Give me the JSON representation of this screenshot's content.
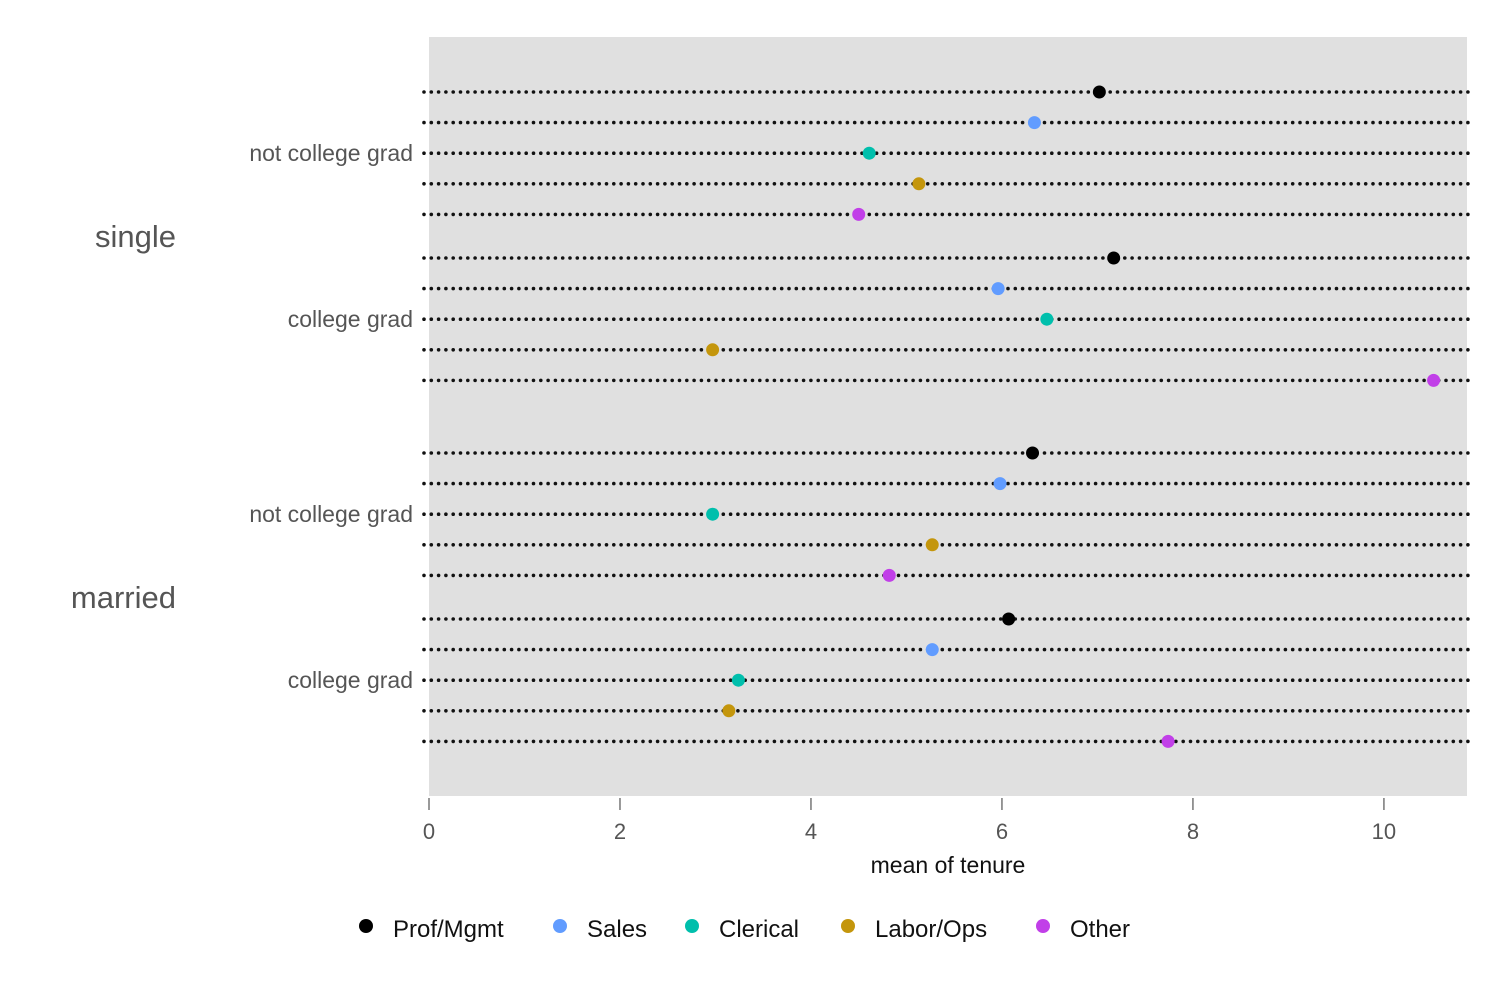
{
  "chart_data": {
    "type": "scatter",
    "title": "",
    "xlabel": "mean of tenure",
    "ylabel": "",
    "xlim": [
      0,
      10.87
    ],
    "xticks": [
      0,
      2,
      4,
      6,
      8,
      10
    ],
    "grid": "dotted horizontal guide lines",
    "legend_position": "bottom",
    "groups": [
      {
        "label": "single",
        "subgroups": [
          {
            "label": "not college grad",
            "values": [
              7.02,
              6.34,
              4.61,
              5.13,
              4.5
            ]
          },
          {
            "label": "college grad",
            "values": [
              7.17,
              5.96,
              6.47,
              2.97,
              10.52
            ]
          }
        ]
      },
      {
        "label": "married",
        "subgroups": [
          {
            "label": "not college grad",
            "values": [
              6.32,
              5.98,
              2.97,
              5.27,
              4.82
            ]
          },
          {
            "label": "college grad",
            "values": [
              6.07,
              5.27,
              3.24,
              3.14,
              7.74
            ]
          }
        ]
      }
    ],
    "series": [
      {
        "name": "Prof/Mgmt",
        "color": "#000000"
      },
      {
        "name": "Sales",
        "color": "#619CFF"
      },
      {
        "name": "Clerical",
        "color": "#00BFAC"
      },
      {
        "name": "Labor/Ops",
        "color": "#C4960C"
      },
      {
        "name": "Other",
        "color": "#C13FE8"
      }
    ],
    "panel_background": "#E0E0E0"
  }
}
